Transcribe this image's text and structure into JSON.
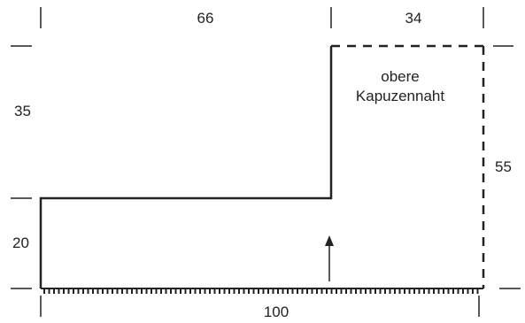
{
  "dimensions": {
    "top_left": "66",
    "top_right": "34",
    "left_upper": "35",
    "left_lower": "20",
    "right": "55",
    "bottom": "100"
  },
  "annotation": {
    "line1": "obere",
    "line2": "Kapuzennaht"
  },
  "colors": {
    "line": "#222222",
    "background": "#ffffff"
  },
  "icons": {
    "arrow": "up-arrow-icon"
  }
}
